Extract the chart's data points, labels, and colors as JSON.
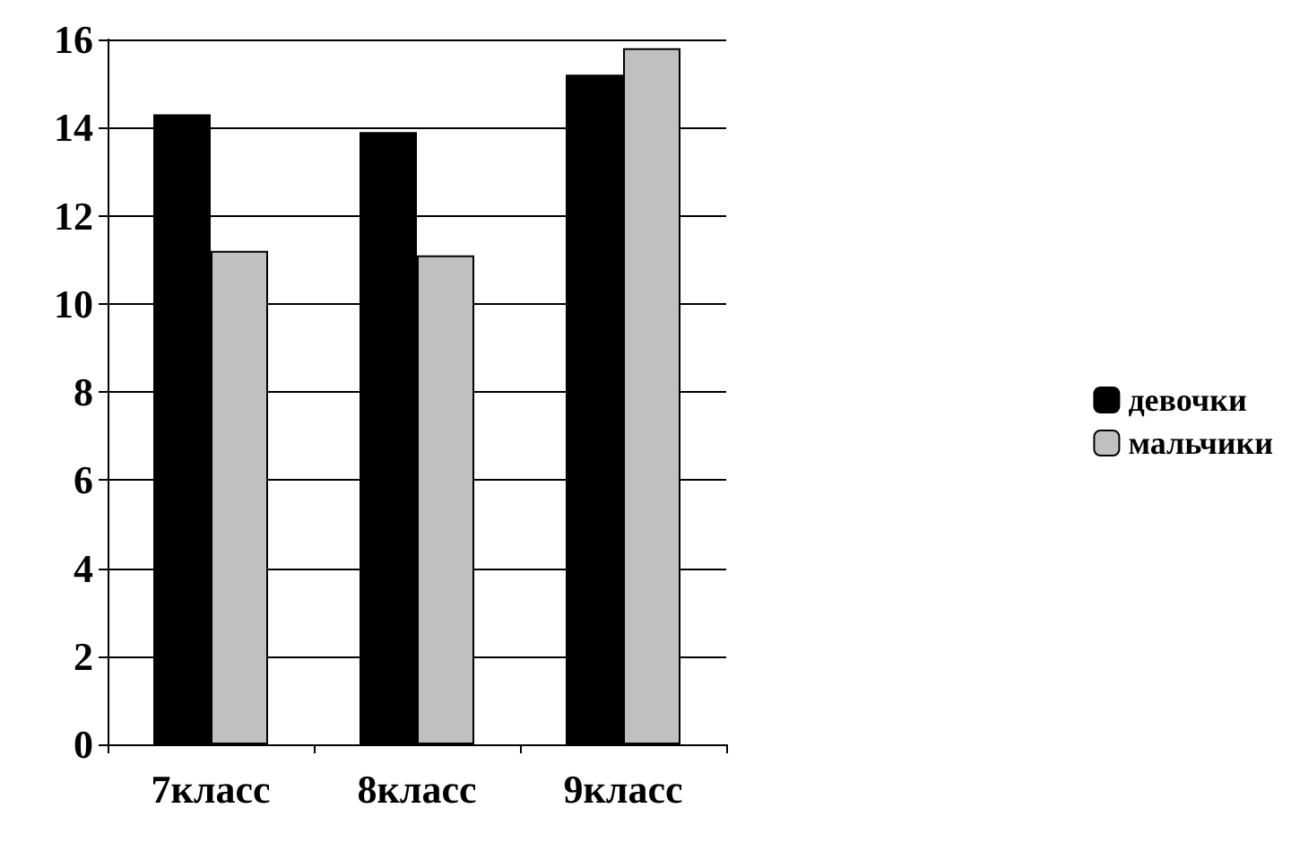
{
  "chart_data": {
    "type": "bar",
    "categories": [
      "7класс",
      "8класс",
      "9класс"
    ],
    "series": [
      {
        "name": "девочки",
        "color": "#000000",
        "values": [
          14.3,
          13.9,
          15.2
        ]
      },
      {
        "name": "мальчики",
        "color": "#c0c0c0",
        "values": [
          11.2,
          11.1,
          15.8
        ]
      }
    ],
    "ylim": [
      0,
      16
    ],
    "yticks": [
      0,
      2,
      4,
      6,
      8,
      10,
      12,
      14,
      16
    ],
    "grid": "y",
    "legend": "right"
  }
}
